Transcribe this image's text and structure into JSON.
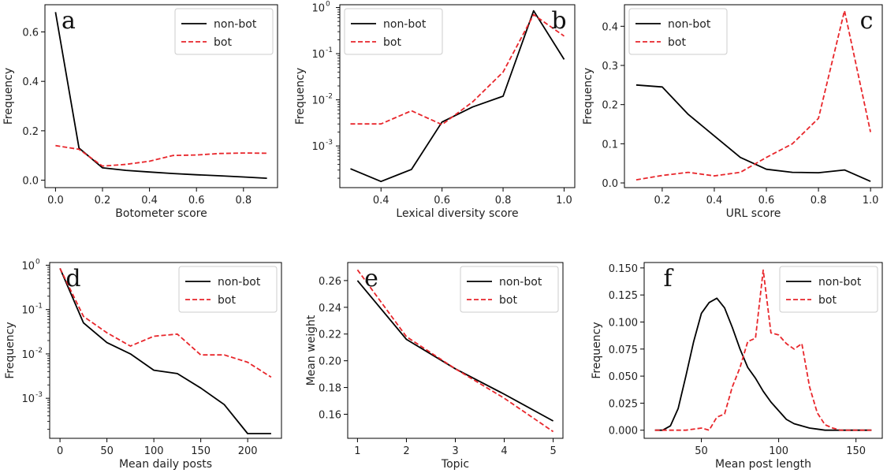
{
  "chart_data": [
    {
      "type": "line",
      "letter": "a",
      "xlabel": "Botometer score",
      "ylabel": "Frequency",
      "xlim": [
        -0.045,
        0.945
      ],
      "ylim": [
        -0.03,
        0.71
      ],
      "yscale": "linear",
      "xticks": [
        0.0,
        0.2,
        0.4,
        0.6,
        0.8
      ],
      "xtick_labels": [
        "0.0",
        "0.2",
        "0.4",
        "0.6",
        "0.8"
      ],
      "yticks": [
        0.0,
        0.2,
        0.4,
        0.6
      ],
      "ytick_labels": [
        "0.0",
        "0.2",
        "0.4",
        "0.6"
      ],
      "legend": "top-right",
      "series": [
        {
          "name": "non-bot",
          "color": "#000000",
          "dash": "solid",
          "x": [
            0.0,
            0.1,
            0.2,
            0.3,
            0.4,
            0.5,
            0.6,
            0.7,
            0.8,
            0.9
          ],
          "y": [
            0.68,
            0.13,
            0.05,
            0.04,
            0.033,
            0.027,
            0.022,
            0.018,
            0.013,
            0.008
          ]
        },
        {
          "name": "bot",
          "color": "#e8262b",
          "dash": "dashed",
          "x": [
            0.0,
            0.1,
            0.2,
            0.3,
            0.4,
            0.5,
            0.6,
            0.7,
            0.8,
            0.9
          ],
          "y": [
            0.14,
            0.125,
            0.057,
            0.064,
            0.077,
            0.1,
            0.102,
            0.108,
            0.11,
            0.109
          ]
        }
      ]
    },
    {
      "type": "line",
      "letter": "b",
      "xlabel": "Lexical diversity score",
      "ylabel": "Frequency",
      "xlim": [
        0.265,
        1.035
      ],
      "ylim": [
        0.000125,
        1.15
      ],
      "yscale": "log",
      "xticks": [
        0.4,
        0.6,
        0.8,
        1.0
      ],
      "xtick_labels": [
        "0.4",
        "0.6",
        "0.8",
        "1.0"
      ],
      "yticks": [
        0.001,
        0.01,
        0.1,
        1
      ],
      "ytick_labels": [
        "10",
        "10",
        "10",
        "10"
      ],
      "ytick_exponents": [
        "-3",
        "-2",
        "-1",
        "0"
      ],
      "legend": "top-left",
      "series": [
        {
          "name": "non-bot",
          "color": "#000000",
          "dash": "solid",
          "x": [
            0.3,
            0.4,
            0.5,
            0.6,
            0.7,
            0.8,
            0.9,
            1.0
          ],
          "y": [
            0.00032,
            0.00017,
            0.00031,
            0.0033,
            0.007,
            0.012,
            0.85,
            0.075
          ]
        },
        {
          "name": "bot",
          "color": "#e8262b",
          "dash": "dashed",
          "x": [
            0.3,
            0.4,
            0.5,
            0.6,
            0.7,
            0.8,
            0.9,
            1.0
          ],
          "y": [
            0.003,
            0.003,
            0.0058,
            0.0029,
            0.009,
            0.04,
            0.7,
            0.24
          ]
        }
      ]
    },
    {
      "type": "line",
      "letter": "c",
      "xlabel": "URL score",
      "ylabel": "Frequency",
      "xlim": [
        0.055,
        1.045
      ],
      "ylim": [
        -0.012,
        0.455
      ],
      "yscale": "linear",
      "xticks": [
        0.2,
        0.4,
        0.6,
        0.8,
        1.0
      ],
      "xtick_labels": [
        "0.2",
        "0.4",
        "0.6",
        "0.8",
        "1.0"
      ],
      "yticks": [
        0.0,
        0.1,
        0.2,
        0.3,
        0.4
      ],
      "ytick_labels": [
        "0.0",
        "0.1",
        "0.2",
        "0.3",
        "0.4"
      ],
      "legend": "top-left",
      "series": [
        {
          "name": "non-bot",
          "color": "#000000",
          "dash": "solid",
          "x": [
            0.1,
            0.2,
            0.3,
            0.4,
            0.5,
            0.6,
            0.7,
            0.8,
            0.9,
            1.0
          ],
          "y": [
            0.25,
            0.245,
            0.175,
            0.12,
            0.065,
            0.035,
            0.027,
            0.026,
            0.033,
            0.004
          ]
        },
        {
          "name": "bot",
          "color": "#e8262b",
          "dash": "dashed",
          "x": [
            0.1,
            0.2,
            0.3,
            0.4,
            0.5,
            0.6,
            0.7,
            0.8,
            0.9,
            1.0
          ],
          "y": [
            0.008,
            0.019,
            0.027,
            0.018,
            0.027,
            0.065,
            0.1,
            0.165,
            0.44,
            0.13
          ]
        }
      ]
    },
    {
      "type": "line",
      "letter": "d",
      "xlabel": "Mean daily posts",
      "ylabel": "Frequency",
      "xlim": [
        -11,
        236
      ],
      "ylim": [
        0.000125,
        1.15
      ],
      "yscale": "log",
      "xticks": [
        0,
        50,
        100,
        150,
        200
      ],
      "xtick_labels": [
        "0",
        "50",
        "100",
        "150",
        "200"
      ],
      "yticks": [
        0.001,
        0.01,
        0.1,
        1
      ],
      "ytick_labels": [
        "10",
        "10",
        "10",
        "10"
      ],
      "ytick_exponents": [
        "-3",
        "-2",
        "-1",
        "0"
      ],
      "legend": "top-right",
      "series": [
        {
          "name": "non-bot",
          "color": "#000000",
          "dash": "solid",
          "x": [
            0,
            25,
            50,
            75,
            100,
            125,
            150,
            175,
            200,
            225
          ],
          "y": [
            0.85,
            0.05,
            0.018,
            0.01,
            0.0043,
            0.0036,
            0.0017,
            0.00072,
            0.00016,
            0.00016
          ]
        },
        {
          "name": "bot",
          "color": "#e8262b",
          "dash": "dashed",
          "x": [
            0,
            25,
            50,
            75,
            100,
            125,
            150,
            175,
            200,
            225
          ],
          "y": [
            0.85,
            0.07,
            0.03,
            0.015,
            0.025,
            0.028,
            0.0095,
            0.0095,
            0.0065,
            0.003
          ]
        }
      ]
    },
    {
      "type": "line",
      "letter": "e",
      "xlabel": "Topic",
      "ylabel": "Mean weight",
      "xlim": [
        0.8,
        5.2
      ],
      "ylim": [
        0.142,
        0.2735
      ],
      "yscale": "linear",
      "xticks": [
        1,
        2,
        3,
        4,
        5
      ],
      "xtick_labels": [
        "1",
        "2",
        "3",
        "4",
        "5"
      ],
      "yticks": [
        0.16,
        0.18,
        0.2,
        0.22,
        0.24,
        0.26
      ],
      "ytick_labels": [
        "0.16",
        "0.18",
        "0.20",
        "0.22",
        "0.24",
        "0.26"
      ],
      "legend": "top-right",
      "series": [
        {
          "name": "non-bot",
          "color": "#000000",
          "dash": "solid",
          "x": [
            1,
            2,
            3,
            4,
            5
          ],
          "y": [
            0.26,
            0.216,
            0.194,
            0.175,
            0.155
          ]
        },
        {
          "name": "bot",
          "color": "#e8262b",
          "dash": "dashed",
          "x": [
            1,
            2,
            3,
            4,
            5
          ],
          "y": [
            0.268,
            0.218,
            0.194,
            0.172,
            0.147
          ]
        }
      ]
    },
    {
      "type": "line",
      "letter": "f",
      "xlabel": "Mean post length",
      "ylabel": "Frequency",
      "xlim": [
        13,
        167
      ],
      "ylim": [
        -0.0075,
        0.155
      ],
      "yscale": "linear",
      "xticks": [
        50,
        100,
        150
      ],
      "xtick_labels": [
        "50",
        "100",
        "150"
      ],
      "yticks": [
        0.0,
        0.025,
        0.05,
        0.075,
        0.1,
        0.125,
        0.15
      ],
      "ytick_labels": [
        "0.000",
        "0.025",
        "0.050",
        "0.075",
        "0.100",
        "0.125",
        "0.150"
      ],
      "legend": "top-right",
      "series": [
        {
          "name": "non-bot",
          "color": "#000000",
          "dash": "solid",
          "x": [
            20,
            25,
            30,
            35,
            40,
            45,
            50,
            55,
            60,
            65,
            70,
            75,
            80,
            85,
            90,
            95,
            100,
            105,
            110,
            115,
            120,
            125,
            130,
            140,
            150,
            160
          ],
          "y": [
            0.0,
            0.0,
            0.004,
            0.02,
            0.05,
            0.082,
            0.108,
            0.118,
            0.122,
            0.113,
            0.095,
            0.075,
            0.058,
            0.048,
            0.036,
            0.026,
            0.018,
            0.01,
            0.006,
            0.004,
            0.002,
            0.001,
            0.0,
            0.0,
            0.0,
            0.0
          ]
        },
        {
          "name": "bot",
          "color": "#e8262b",
          "dash": "dashed",
          "x": [
            20,
            30,
            40,
            50,
            55,
            60,
            65,
            70,
            75,
            80,
            85,
            90,
            95,
            100,
            105,
            110,
            115,
            120,
            125,
            130,
            135,
            140,
            150,
            160
          ],
          "y": [
            0.0,
            0.0,
            0.0,
            0.002,
            0.0,
            0.012,
            0.015,
            0.04,
            0.058,
            0.082,
            0.085,
            0.148,
            0.09,
            0.088,
            0.08,
            0.075,
            0.08,
            0.04,
            0.016,
            0.005,
            0.002,
            0.0,
            0.0,
            0.0
          ]
        }
      ]
    }
  ]
}
